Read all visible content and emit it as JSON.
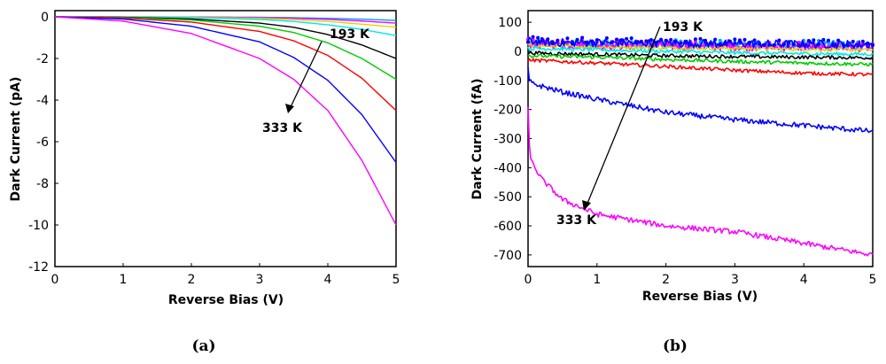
{
  "chart_data": [
    {
      "type": "line",
      "panel_label": "(a)",
      "xlabel": "Reverse Bias (V)",
      "ylabel": "Dark Current (pA)",
      "xlim": [
        0,
        5
      ],
      "ylim": [
        -12,
        0.3
      ],
      "xticks": [
        "0",
        "1",
        "2",
        "3",
        "4",
        "5"
      ],
      "yticks": [
        "0",
        "-2",
        "-4",
        "-6",
        "-8",
        "-10",
        "-12"
      ],
      "grid": false,
      "annotations": {
        "start_label": "193 K",
        "end_label": "333 K"
      },
      "series": [
        {
          "color": "#00a0ff",
          "x": [
            0,
            1,
            2,
            3,
            3.5,
            4,
            4.5,
            5
          ],
          "y": [
            0,
            -0.001,
            -0.005,
            -0.02,
            -0.04,
            -0.07,
            -0.11,
            -0.17
          ]
        },
        {
          "color": "#ff00ff",
          "x": [
            0,
            1,
            2,
            3,
            3.5,
            4,
            4.5,
            5
          ],
          "y": [
            0,
            -0.002,
            -0.01,
            -0.035,
            -0.07,
            -0.12,
            -0.2,
            -0.3
          ]
        },
        {
          "color": "#d8d800",
          "x": [
            0,
            1,
            2,
            3,
            3.5,
            4,
            4.5,
            5
          ],
          "y": [
            0,
            -0.005,
            -0.02,
            -0.07,
            -0.13,
            -0.22,
            -0.35,
            -0.5
          ]
        },
        {
          "color": "#00e8e8",
          "x": [
            0,
            1,
            2,
            3,
            3.5,
            4,
            4.5,
            5
          ],
          "y": [
            0,
            -0.01,
            -0.04,
            -0.12,
            -0.22,
            -0.38,
            -0.6,
            -0.9
          ]
        },
        {
          "color": "#000000",
          "x": [
            0,
            1,
            2,
            3,
            3.5,
            4,
            4.5,
            5
          ],
          "y": [
            0,
            -0.02,
            -0.1,
            -0.3,
            -0.5,
            -0.85,
            -1.35,
            -2.0
          ]
        },
        {
          "color": "#00cc00",
          "x": [
            0,
            1,
            2,
            3,
            3.5,
            4,
            4.5,
            5
          ],
          "y": [
            0,
            -0.03,
            -0.15,
            -0.45,
            -0.75,
            -1.25,
            -2.0,
            -3.0
          ]
        },
        {
          "color": "#ff0000",
          "x": [
            0,
            1,
            2,
            3,
            3.5,
            4,
            4.5,
            5
          ],
          "y": [
            0,
            -0.05,
            -0.25,
            -0.7,
            -1.15,
            -1.85,
            -2.95,
            -4.5
          ]
        },
        {
          "color": "#0000ff",
          "x": [
            0,
            1,
            2,
            3,
            3.5,
            4,
            4.5,
            5
          ],
          "y": [
            0,
            -0.1,
            -0.45,
            -1.2,
            -1.95,
            -3.05,
            -4.7,
            -7.0
          ]
        },
        {
          "color": "#ff00ff",
          "x": [
            0,
            1,
            2,
            3,
            3.5,
            4,
            4.5,
            5
          ],
          "y": [
            0,
            -0.2,
            -0.8,
            -2.0,
            -3.0,
            -4.5,
            -6.9,
            -10.0
          ]
        }
      ]
    },
    {
      "type": "line",
      "panel_label": "(b)",
      "xlabel": "Reverse Bias (V)",
      "ylabel": "Dark Current (fA)",
      "xlim": [
        0,
        5
      ],
      "ylim": [
        -740,
        140
      ],
      "xticks": [
        "0",
        "1",
        "2",
        "3",
        "4",
        "5"
      ],
      "yticks": [
        "100",
        "0",
        "-100",
        "-200",
        "-300",
        "-400",
        "-500",
        "-600",
        "-700"
      ],
      "grid": false,
      "annotations": {
        "start_label": "193 K",
        "end_label": "333 K"
      },
      "series": [
        {
          "color": "#00a0ff",
          "marker": "dot",
          "x": [
            0,
            0.5,
            1,
            2,
            3,
            4,
            5
          ],
          "y": [
            30,
            25,
            25,
            22,
            20,
            20,
            18
          ]
        },
        {
          "color": "#ff00ff",
          "marker": "dot",
          "x": [
            0,
            0.5,
            1,
            2,
            3,
            4,
            5
          ],
          "y": [
            25,
            22,
            20,
            18,
            15,
            14,
            12
          ]
        },
        {
          "color": "#d8d800",
          "x": [
            0,
            0.5,
            1,
            2,
            3,
            4,
            5
          ],
          "y": [
            20,
            18,
            15,
            12,
            10,
            8,
            5
          ]
        },
        {
          "color": "#0000ff",
          "marker": "dot",
          "x": [
            0,
            0.5,
            1,
            2,
            3,
            4,
            5
          ],
          "y": [
            35,
            30,
            30,
            28,
            26,
            25,
            24
          ]
        },
        {
          "color": "#00e8e8",
          "x": [
            0,
            0.5,
            1,
            2,
            3,
            4,
            5
          ],
          "y": [
            10,
            8,
            5,
            0,
            -5,
            -8,
            -10
          ]
        },
        {
          "color": "#000000",
          "x": [
            0,
            0.5,
            1,
            2,
            3,
            4,
            5
          ],
          "y": [
            -5,
            -8,
            -10,
            -15,
            -18,
            -20,
            -22
          ]
        },
        {
          "color": "#00cc00",
          "x": [
            0,
            0.5,
            1,
            2,
            3,
            4,
            5
          ],
          "y": [
            -15,
            -18,
            -20,
            -28,
            -35,
            -40,
            -45
          ]
        },
        {
          "color": "#ff0000",
          "x": [
            0,
            0.5,
            1,
            2,
            3,
            4,
            5
          ],
          "y": [
            -30,
            -35,
            -40,
            -52,
            -65,
            -75,
            -80
          ]
        },
        {
          "color": "#0000ff",
          "x": [
            0,
            0.02,
            0.05,
            0.5,
            1,
            2,
            3,
            4,
            5
          ],
          "y": [
            -60,
            -100,
            -110,
            -140,
            -165,
            -210,
            -235,
            -255,
            -275
          ]
        },
        {
          "color": "#ff00ff",
          "x": [
            0,
            0.02,
            0.05,
            0.2,
            0.5,
            1,
            2,
            3,
            4,
            5
          ],
          "y": [
            -200,
            -330,
            -380,
            -440,
            -510,
            -560,
            -600,
            -620,
            -660,
            -700
          ]
        }
      ]
    }
  ]
}
